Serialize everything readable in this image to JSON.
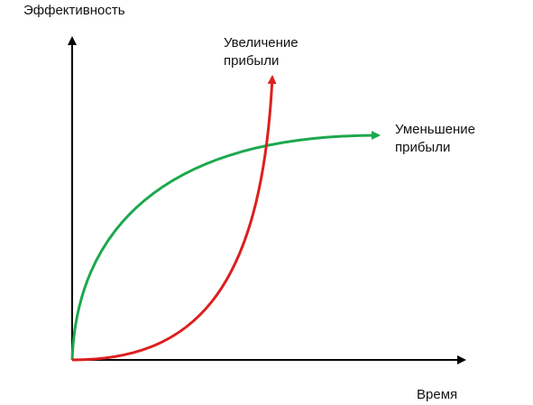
{
  "chart_data": {
    "type": "line",
    "ylabel": "Эффективность",
    "xlabel": "Время",
    "grid": false,
    "axes": {
      "x_ticks": false,
      "y_ticks": false
    },
    "series": [
      {
        "name": "Увеличение прибыли",
        "name_lines": [
          "Увеличение",
          "прибыли"
        ],
        "color": "#dd1f1f",
        "shape": "convex-increasing",
        "end_arrow": true
      },
      {
        "name": "Уменьшение прибыли",
        "name_lines": [
          "Уменьшение",
          "прибыли"
        ],
        "color": "#1ca84e",
        "shape": "concave-increasing",
        "end_arrow": true
      }
    ]
  },
  "colors": {
    "axis": "#000000",
    "text": "#111111"
  }
}
